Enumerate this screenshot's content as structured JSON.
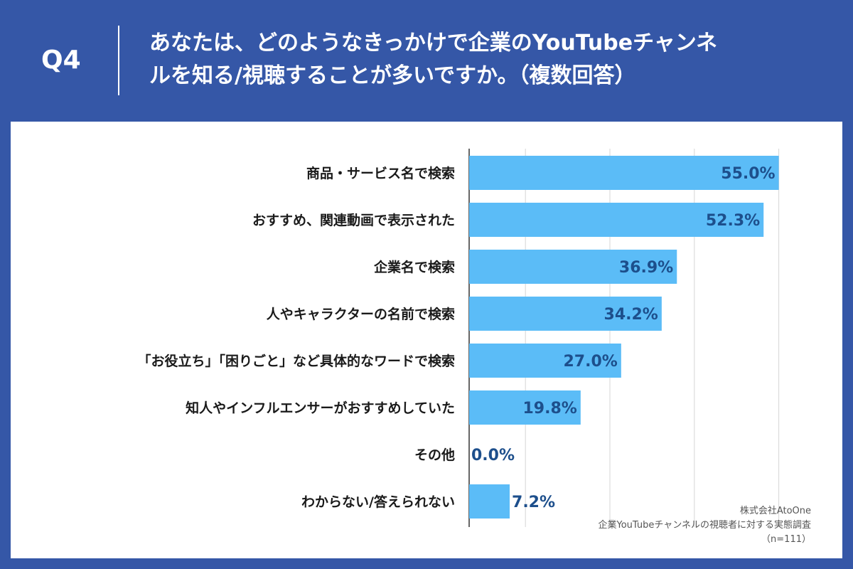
{
  "header": {
    "question_number": "Q4",
    "title_line1": "あなたは、どのようなきっかけで企業のYouTubeチャンネ",
    "title_line2": "ルを知る/視聴することが多いですか。（複数回答）"
  },
  "colors": {
    "header_bg": "#3557a7",
    "bar": "#5bbcf7",
    "value_text": "#1d4f8c"
  },
  "chart_data": {
    "type": "bar",
    "orientation": "horizontal",
    "categories": [
      "商品・サービス名で検索",
      "おすすめ、関連動画で表示された",
      "企業名で検索",
      "人やキャラクターの名前で検索",
      "「お役立ち」「困りごと」など具体的なワードで検索",
      "知人やインフルエンサーがおすすめしていた",
      "その他",
      "わからない/答えられない"
    ],
    "values": [
      55.0,
      52.3,
      36.9,
      34.2,
      27.0,
      19.8,
      0.0,
      7.2
    ],
    "value_labels": [
      "55.0%",
      "52.3%",
      "36.9%",
      "34.2%",
      "27.0%",
      "19.8%",
      "0.0%",
      "7.2%"
    ],
    "xlim": [
      0,
      60
    ],
    "grid": true
  },
  "source": {
    "line1": "株式会社AtoOne",
    "line2": "企業YouTubeチャンネルの視聴者に対する実態調査",
    "line3": "（n=111）"
  }
}
